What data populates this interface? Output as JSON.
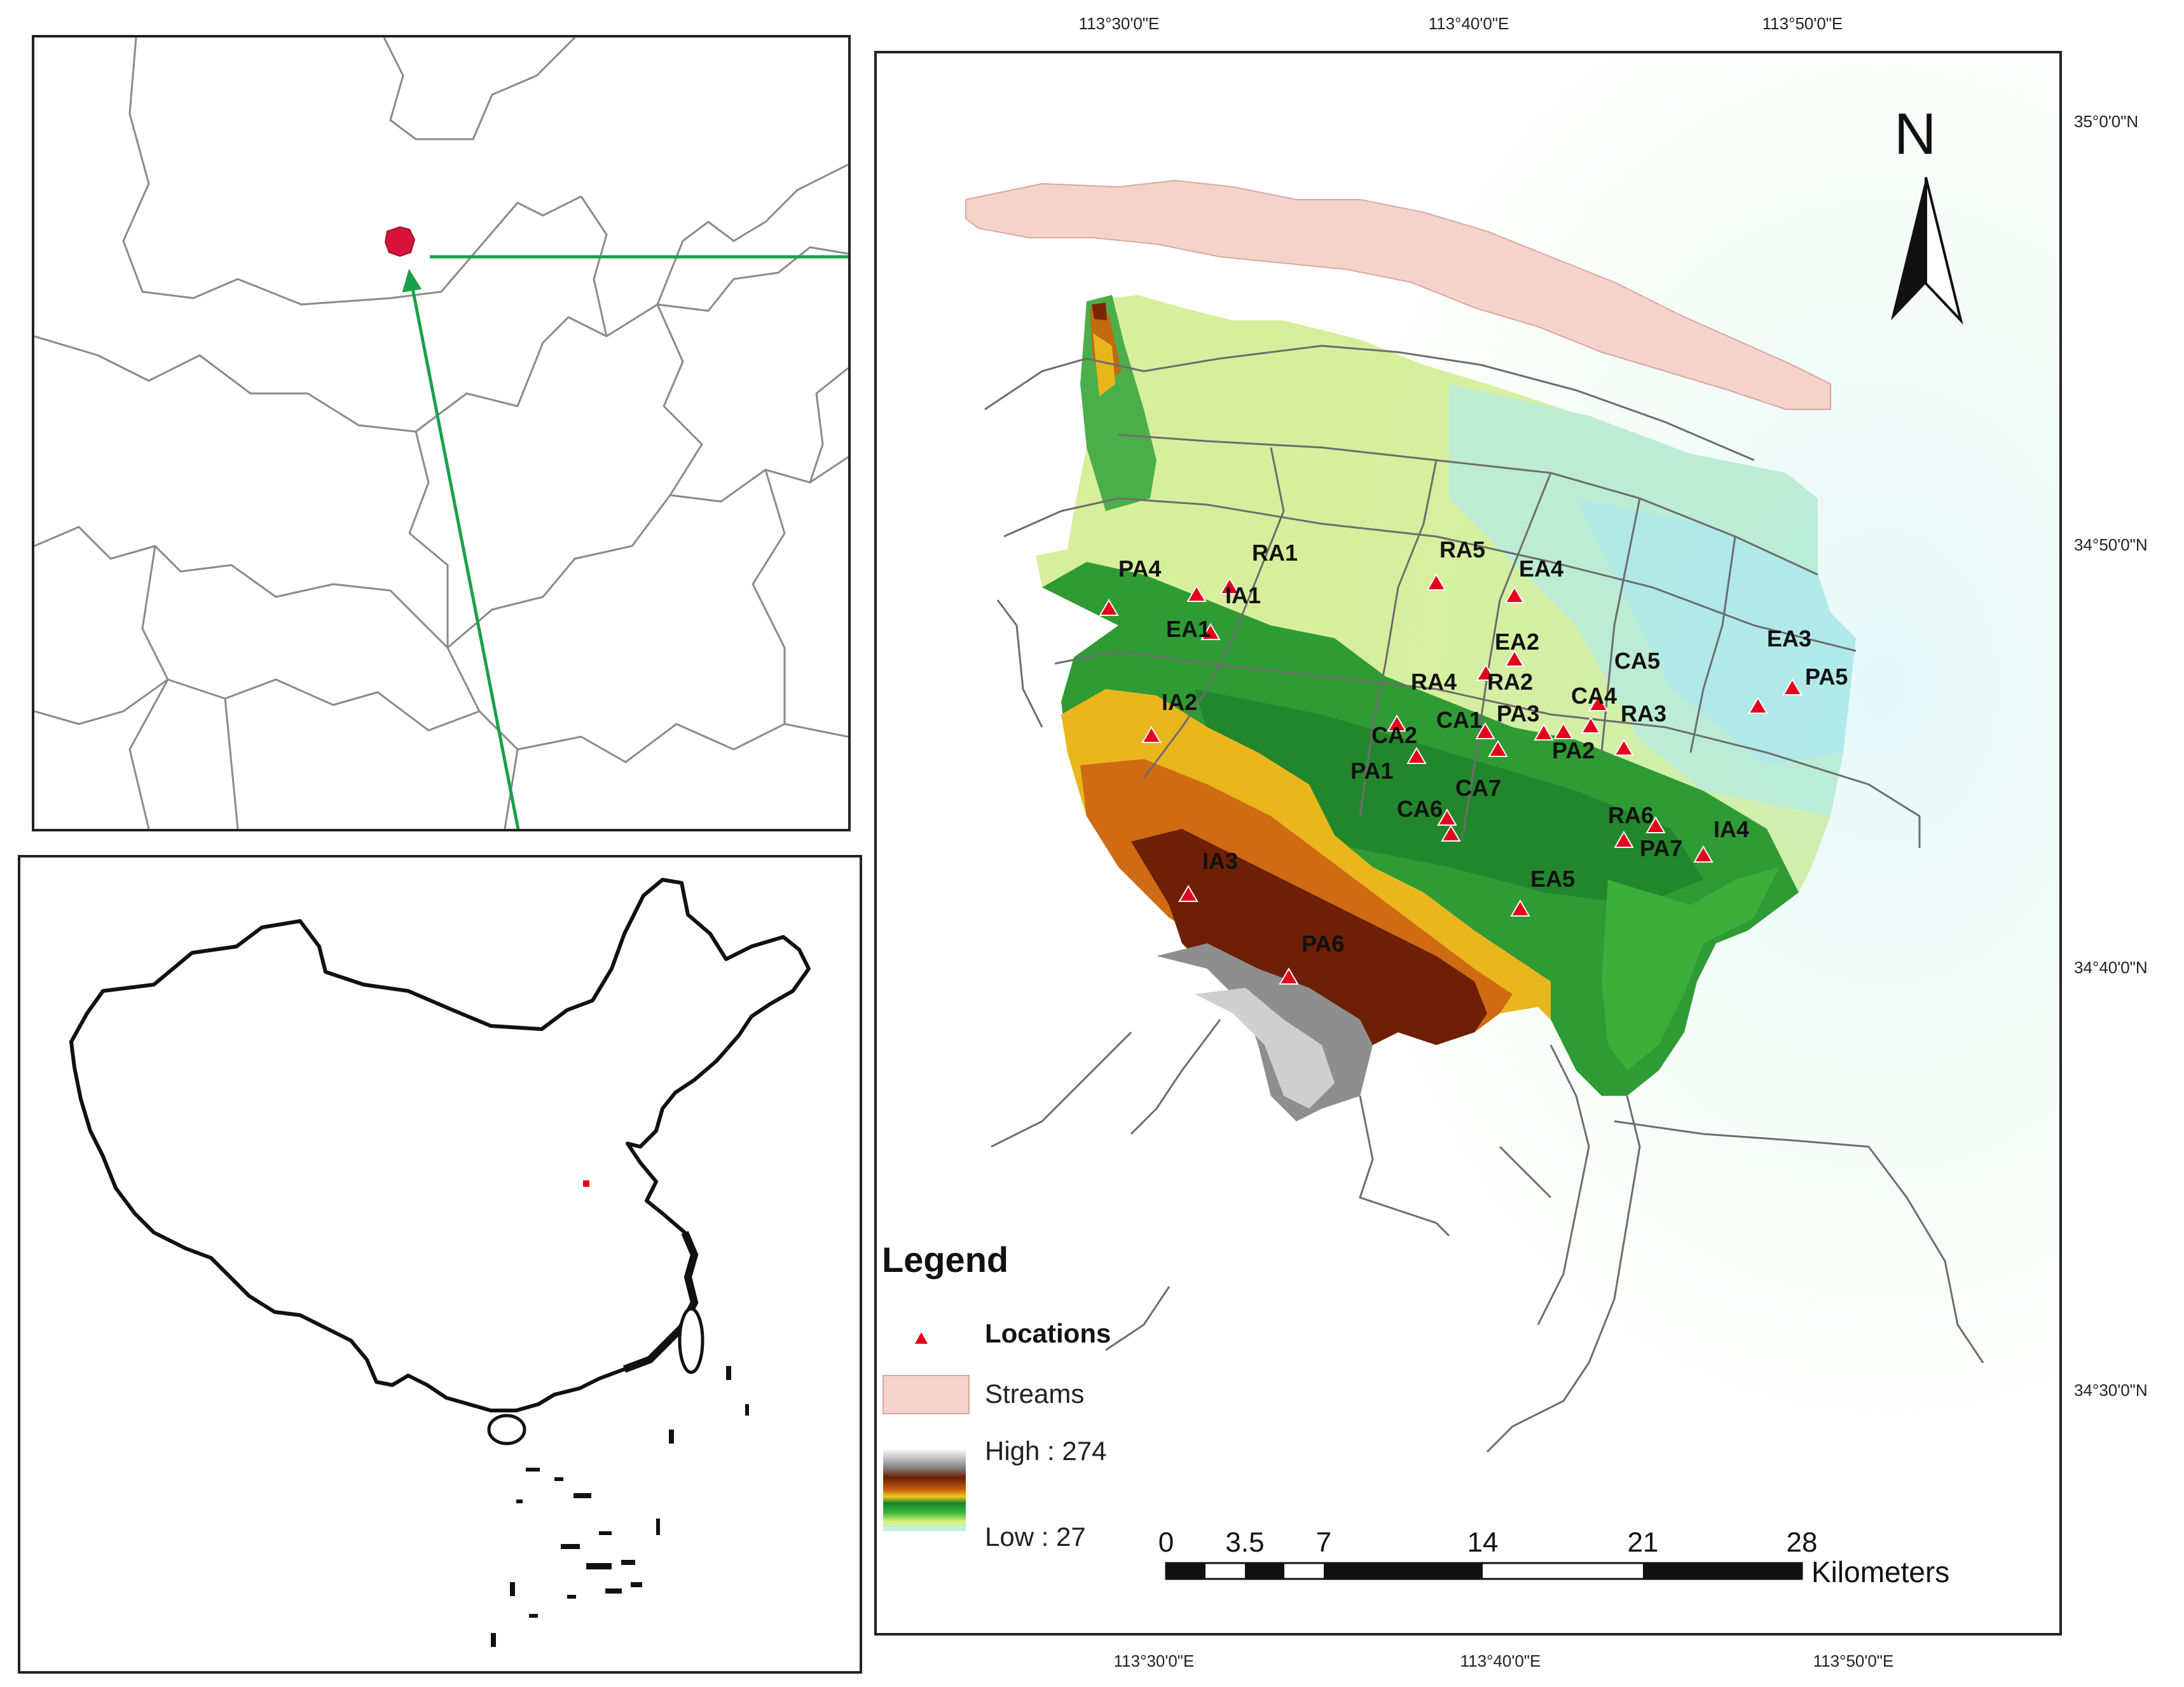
{
  "coords": {
    "top": [
      "113°30'0\"E",
      "113°40'0\"E",
      "113°50'0\"E"
    ],
    "bottom": [
      "113°30'0\"E",
      "113°40'0\"E",
      "113°50'0\"E"
    ],
    "right": [
      "35°0'0\"N",
      "34°50'0\"N",
      "34°40'0\"N",
      "34°30'0\"N"
    ]
  },
  "north_arrow": {
    "label": "N"
  },
  "sites": [
    {
      "label": "PA4"
    },
    {
      "label": "RA1"
    },
    {
      "label": "IA1"
    },
    {
      "label": "EA1"
    },
    {
      "label": "RA5"
    },
    {
      "label": "EA4"
    },
    {
      "label": "EA2"
    },
    {
      "label": "CA5"
    },
    {
      "label": "EA3"
    },
    {
      "label": "PA5"
    },
    {
      "label": "RA4"
    },
    {
      "label": "RA2"
    },
    {
      "label": "CA4"
    },
    {
      "label": "CA1"
    },
    {
      "label": "PA3"
    },
    {
      "label": "RA3"
    },
    {
      "label": "IA2"
    },
    {
      "label": "CA2"
    },
    {
      "label": "PA2"
    },
    {
      "label": "PA1"
    },
    {
      "label": "CA6"
    },
    {
      "label": "CA7"
    },
    {
      "label": "RA6"
    },
    {
      "label": "PA7"
    },
    {
      "label": "IA4"
    },
    {
      "label": "IA3"
    },
    {
      "label": "EA5"
    },
    {
      "label": "PA6"
    }
  ],
  "legend": {
    "title": "Legend",
    "locations": "Locations",
    "streams": "Streams",
    "high": "High : 274",
    "low": "Low : 27",
    "colors": {
      "location_marker": "#e3001b",
      "streams": "#f4d3cb"
    }
  },
  "scale_bar": {
    "ticks": [
      "0",
      "3.5",
      "7",
      "14",
      "21",
      "28"
    ],
    "unit": "Kilometers"
  }
}
